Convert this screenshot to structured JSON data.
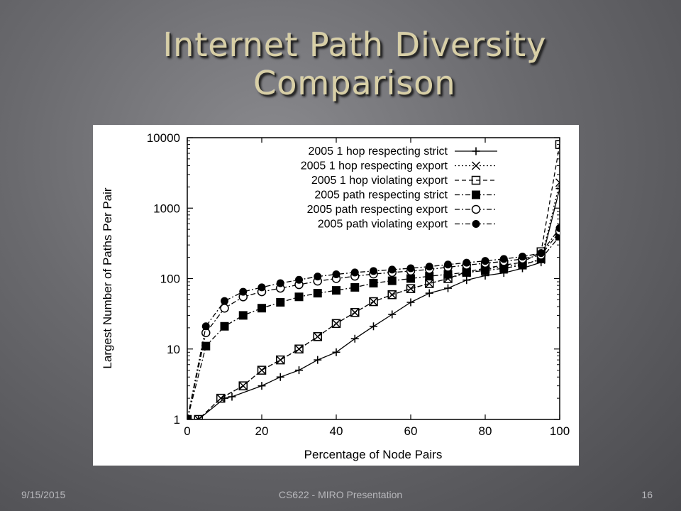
{
  "slide": {
    "title_line1": "Internet Path Diversity",
    "title_line2": "Comparison",
    "footer_date": "9/15/2015",
    "footer_center": "CS622 - MIRO Presentation",
    "page_number": "16"
  },
  "chart_data": {
    "type": "line",
    "title": "",
    "xlabel": "Percentage of Node Pairs",
    "ylabel": "Largest Number of Paths Per Pair",
    "x_ticks": [
      0,
      20,
      40,
      60,
      80,
      100
    ],
    "y_ticks": [
      1,
      10,
      100,
      1000,
      10000
    ],
    "y_tick_labels": [
      "1",
      "10",
      "100",
      "1000",
      "10000"
    ],
    "xlim": [
      0,
      100
    ],
    "ylim": [
      1,
      10000
    ],
    "y_scale": "log",
    "legend_position": "top-right",
    "series": [
      {
        "name": "2005 1 hop respecting strict",
        "marker": "plus",
        "line": "solid",
        "x": [
          0,
          3,
          10,
          12,
          20,
          25,
          30,
          35,
          40,
          45,
          50,
          55,
          60,
          65,
          70,
          75,
          80,
          85,
          90,
          95,
          100
        ],
        "y": [
          1,
          1,
          2,
          2.1,
          3,
          4,
          5,
          7,
          9,
          14,
          21,
          31,
          46,
          62,
          73,
          95,
          110,
          120,
          140,
          170,
          1900
        ]
      },
      {
        "name": "2005 1 hop respecting export",
        "marker": "cross",
        "line": "dotted",
        "x": [
          0,
          3,
          9,
          15,
          20,
          25,
          30,
          35,
          40,
          45,
          50,
          55,
          60,
          65,
          70,
          75,
          80,
          85,
          90,
          95,
          100
        ],
        "y": [
          1,
          1,
          2,
          3,
          5,
          7,
          10,
          15,
          23,
          33,
          47,
          59,
          72,
          85,
          100,
          120,
          135,
          150,
          160,
          185,
          2300
        ]
      },
      {
        "name": "2005 1 hop violating export",
        "marker": "open-square",
        "line": "dashed",
        "x": [
          0,
          3,
          9,
          15,
          20,
          25,
          30,
          35,
          40,
          45,
          50,
          55,
          60,
          65,
          70,
          75,
          80,
          85,
          90,
          95,
          100
        ],
        "y": [
          1,
          1,
          2,
          3,
          5,
          7,
          10,
          15,
          23,
          33,
          47,
          59,
          72,
          85,
          100,
          125,
          140,
          155,
          170,
          240,
          8000
        ]
      },
      {
        "name": "2005 path respecting strict",
        "marker": "filled-square",
        "line": "dash-dot",
        "x": [
          0,
          5,
          10,
          15,
          20,
          25,
          30,
          35,
          40,
          45,
          50,
          55,
          60,
          65,
          70,
          75,
          80,
          85,
          90,
          95,
          100
        ],
        "y": [
          1,
          11,
          21,
          30,
          38,
          46,
          55,
          62,
          68,
          75,
          86,
          93,
          100,
          108,
          115,
          122,
          130,
          140,
          155,
          190,
          400
        ]
      },
      {
        "name": "2005 path respecting export",
        "marker": "open-circle",
        "line": "dash-dot",
        "x": [
          0,
          5,
          10,
          15,
          20,
          25,
          30,
          35,
          40,
          45,
          50,
          55,
          60,
          65,
          70,
          75,
          80,
          85,
          90,
          95,
          100
        ],
        "y": [
          1,
          17,
          38,
          55,
          65,
          73,
          82,
          92,
          100,
          108,
          116,
          122,
          128,
          135,
          145,
          155,
          165,
          175,
          190,
          215,
          470
        ]
      },
      {
        "name": "2005 path violating export",
        "marker": "filled-circle",
        "line": "dash-dot",
        "x": [
          0,
          5,
          10,
          15,
          20,
          25,
          30,
          35,
          40,
          45,
          50,
          55,
          60,
          65,
          70,
          75,
          80,
          85,
          90,
          95,
          100
        ],
        "y": [
          1,
          21,
          48,
          65,
          75,
          86,
          96,
          107,
          115,
          122,
          128,
          134,
          140,
          148,
          158,
          168,
          178,
          190,
          205,
          230,
          520
        ]
      }
    ]
  }
}
